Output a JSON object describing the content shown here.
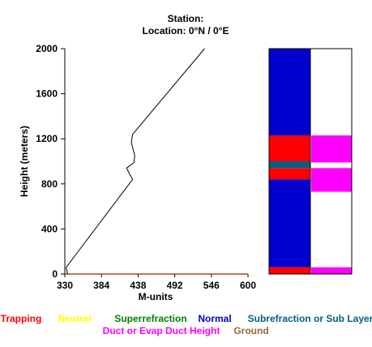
{
  "header": {
    "station_line": "Station:",
    "location_line": "Location:   0°N /   0°E"
  },
  "chart_data": {
    "type": "line",
    "xlabel": "M-units",
    "ylabel": "Height (meters)",
    "xlim": [
      330,
      600
    ],
    "ylim": [
      0,
      2000
    ],
    "x_ticks": [
      330,
      384,
      438,
      492,
      546,
      600
    ],
    "y_ticks": [
      0,
      400,
      800,
      1200,
      1600,
      2000
    ],
    "grid": false,
    "series": [
      {
        "color": "#000000",
        "points": [
          [
            334,
            0
          ],
          [
            332,
            60
          ],
          [
            430,
            840
          ],
          [
            426,
            880
          ],
          [
            421,
            940
          ],
          [
            432,
            990
          ],
          [
            433,
            1050
          ],
          [
            428,
            1170
          ],
          [
            430,
            1240
          ],
          [
            536,
            2000
          ]
        ]
      }
    ],
    "ground_line": {
      "y": 0,
      "color": "#a0522d"
    },
    "layer_bar": {
      "columns": 2,
      "ylim": [
        0,
        2000
      ],
      "left_column": [
        {
          "type": "Normal",
          "from": 1230,
          "to": 2000
        },
        {
          "type": "Trapping",
          "from": 1000,
          "to": 1230
        },
        {
          "type": "Subrefraction or Sub Layer",
          "from": 940,
          "to": 1000
        },
        {
          "type": "Trapping",
          "from": 840,
          "to": 940
        },
        {
          "type": "Normal",
          "from": 60,
          "to": 840
        },
        {
          "type": "Trapping",
          "from": 0,
          "to": 60
        }
      ],
      "right_column": [
        {
          "type": "Duct or Evap Duct Height",
          "from": 990,
          "to": 1230
        },
        {
          "type": "Duct or Evap Duct Height",
          "from": 730,
          "to": 940
        },
        {
          "type": "Duct or Evap Duct Height",
          "from": 0,
          "to": 60
        }
      ]
    },
    "legend": {
      "placement": "bottom",
      "entries": [
        {
          "label": "Trapping",
          "color": "#ff0000"
        },
        {
          "label": "Neutral",
          "color": "#ffff00"
        },
        {
          "label": "Superrefraction",
          "color": "#008000"
        },
        {
          "label": "Normal",
          "color": "#0000cc"
        },
        {
          "label": "Subrefraction or Sub Layer",
          "color": "#006080"
        },
        {
          "label": "Duct or Evap Duct Height",
          "color": "#ff00ff"
        },
        {
          "label": "Ground",
          "color": "#996633"
        }
      ]
    }
  }
}
